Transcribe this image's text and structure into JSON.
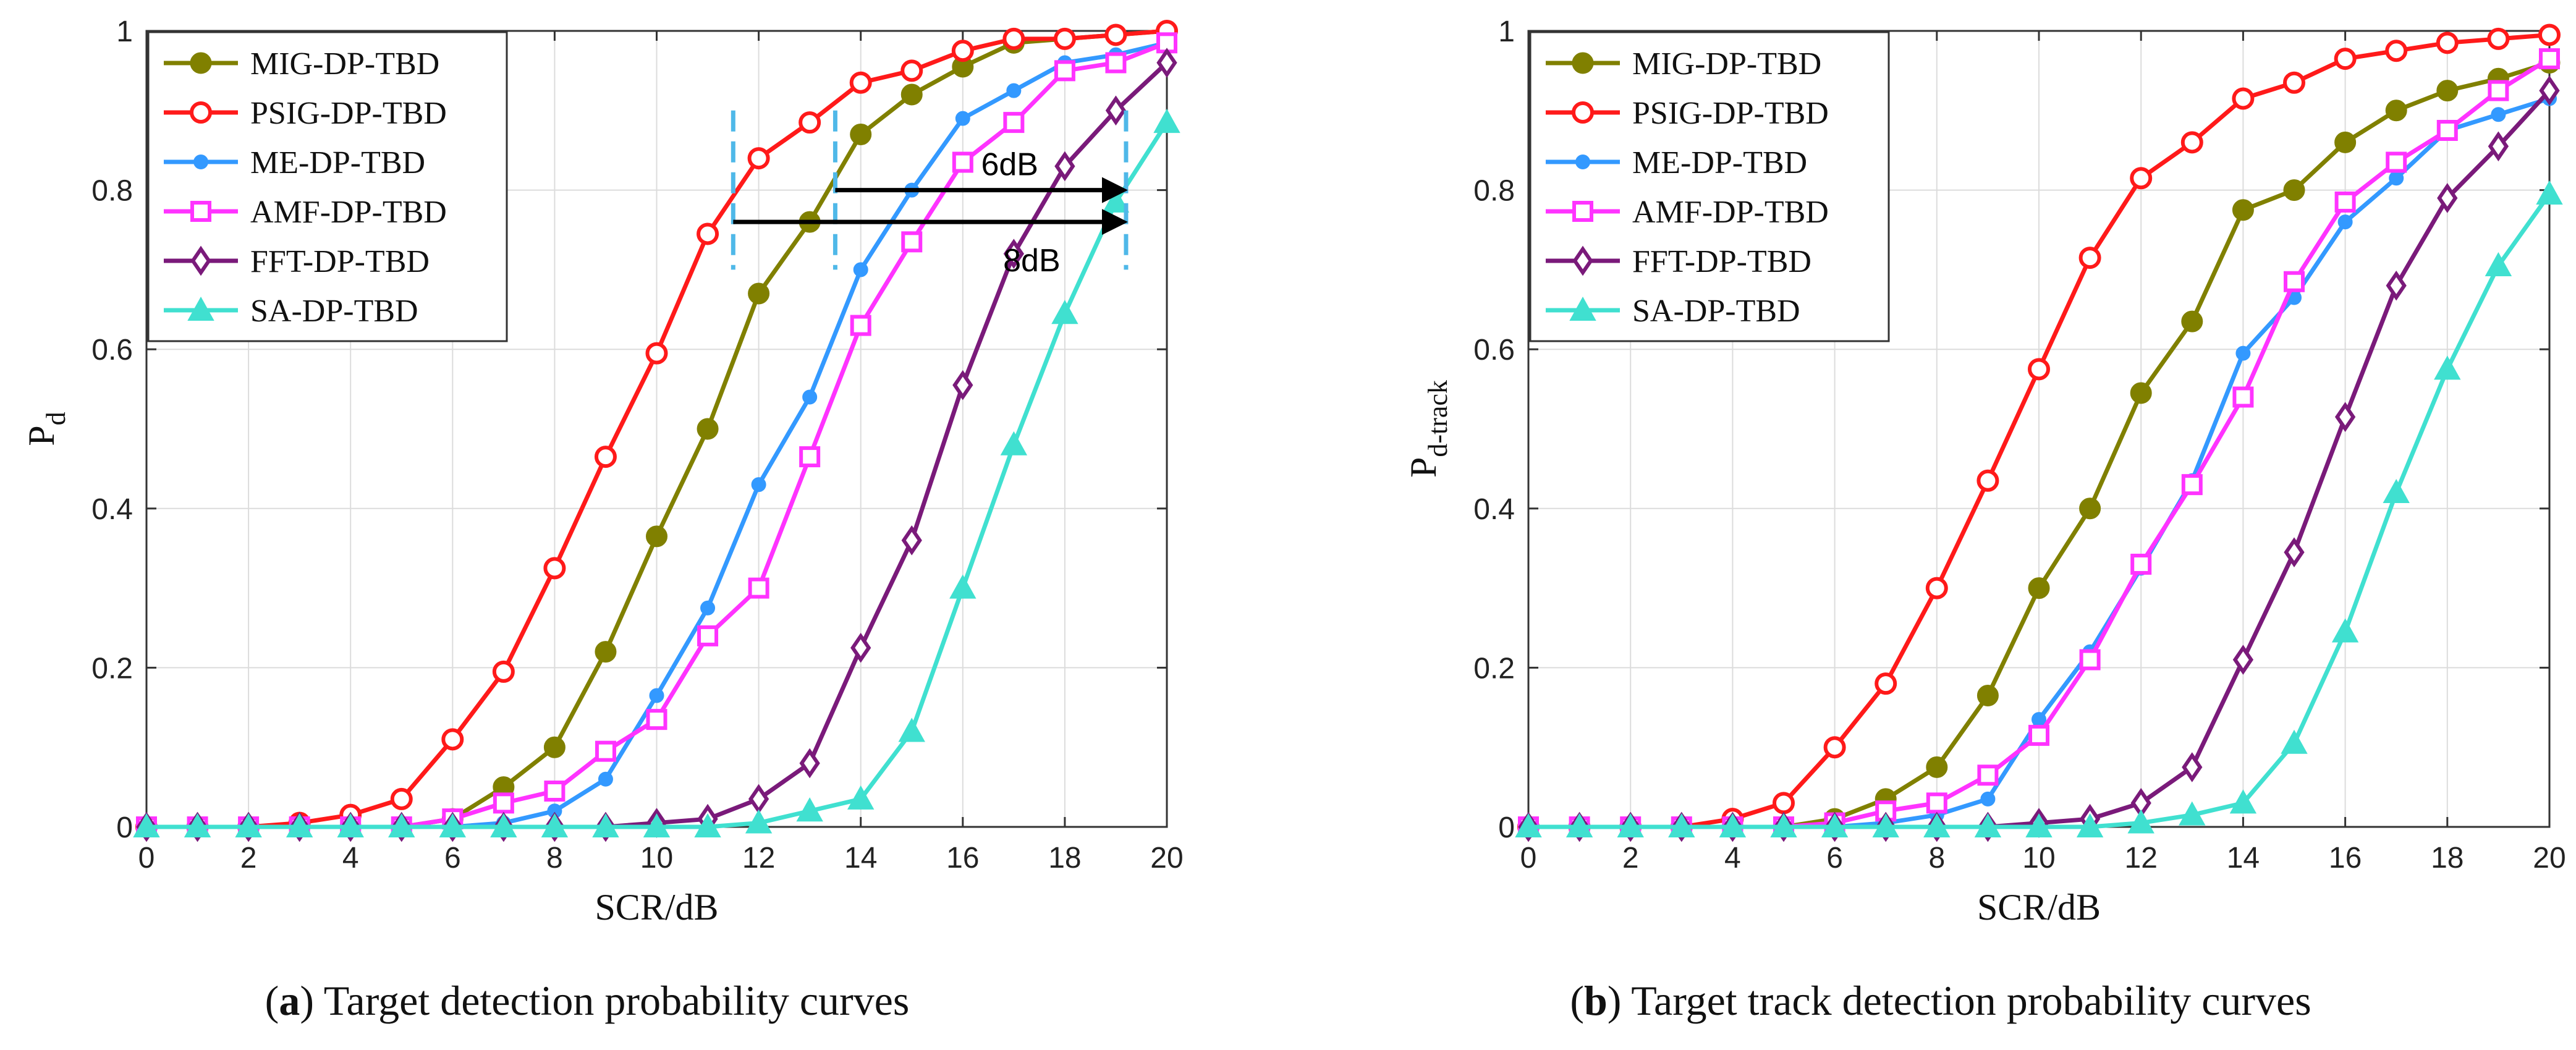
{
  "colors": {
    "MIG-DP-TBD": "#808000",
    "PSIG-DP-TBD": "#ff1a1a",
    "ME-DP-TBD": "#3399ff",
    "AMF-DP-TBD": "#ff33ff",
    "FFT-DP-TBD": "#7a1a7a",
    "SA-DP-TBD": "#40e0d0",
    "annotation_dash": "#4fb8e8"
  },
  "captions": {
    "a": {
      "letter": "a",
      "text": "Target detection probability curves"
    },
    "b": {
      "letter": "b",
      "text": "Target track detection probability curves"
    }
  },
  "chart_data": [
    {
      "id": "a",
      "type": "line",
      "xlabel": "SCR/dB",
      "ylabel": "P",
      "ylabel_sub": "d",
      "xlim": [
        0,
        20
      ],
      "ylim": [
        0,
        1
      ],
      "xticks": [
        0,
        2,
        4,
        6,
        8,
        10,
        12,
        14,
        16,
        18,
        20
      ],
      "yticks": [
        0,
        0.2,
        0.4,
        0.6,
        0.8,
        1
      ],
      "ytick_labels": [
        "0",
        "0.2",
        "0.4",
        "0.6",
        "0.8",
        "1"
      ],
      "grid": true,
      "legend_position": "top-left",
      "x": [
        0,
        1,
        2,
        3,
        4,
        5,
        6,
        7,
        8,
        9,
        10,
        11,
        12,
        13,
        14,
        15,
        16,
        17,
        18,
        19,
        20
      ],
      "series": [
        {
          "name": "MIG-DP-TBD",
          "marker": "circle-filled",
          "values": [
            0,
            0,
            0,
            0,
            0,
            0,
            0.01,
            0.05,
            0.1,
            0.22,
            0.365,
            0.5,
            0.67,
            0.76,
            0.87,
            0.92,
            0.955,
            0.985,
            0.99,
            0.995,
            1.0
          ]
        },
        {
          "name": "PSIG-DP-TBD",
          "marker": "circle-open",
          "values": [
            0,
            0,
            0,
            0.005,
            0.015,
            0.035,
            0.11,
            0.195,
            0.325,
            0.465,
            0.595,
            0.745,
            0.84,
            0.885,
            0.935,
            0.95,
            0.975,
            0.99,
            0.99,
            0.995,
            1.0
          ]
        },
        {
          "name": "ME-DP-TBD",
          "marker": "dot-filled",
          "values": [
            0,
            0,
            0,
            0,
            0,
            0,
            0,
            0.005,
            0.02,
            0.06,
            0.165,
            0.275,
            0.43,
            0.54,
            0.7,
            0.8,
            0.89,
            0.925,
            0.96,
            0.97,
            0.985
          ]
        },
        {
          "name": "AMF-DP-TBD",
          "marker": "square-open",
          "values": [
            0,
            0,
            0,
            0,
            0,
            0,
            0.01,
            0.03,
            0.045,
            0.095,
            0.135,
            0.24,
            0.3,
            0.465,
            0.63,
            0.735,
            0.835,
            0.885,
            0.95,
            0.96,
            0.985
          ]
        },
        {
          "name": "FFT-DP-TBD",
          "marker": "diamond-open",
          "values": [
            0,
            0,
            0,
            0,
            0,
            0,
            0,
            0,
            0,
            0,
            0.005,
            0.01,
            0.035,
            0.08,
            0.225,
            0.36,
            0.555,
            0.72,
            0.83,
            0.9,
            0.96
          ]
        },
        {
          "name": "SA-DP-TBD",
          "marker": "triangle-filled",
          "values": [
            0,
            0,
            0,
            0,
            0,
            0,
            0,
            0,
            0,
            0,
            0,
            0,
            0.005,
            0.02,
            0.035,
            0.12,
            0.3,
            0.48,
            0.645,
            0.785,
            0.885
          ]
        }
      ],
      "annotations": [
        {
          "text": "6dB",
          "x_from": 13.5,
          "x_to": 19.2,
          "y": 0.8
        },
        {
          "text": "8dB",
          "x_from": 11.5,
          "x_to": 19.2,
          "y": 0.76
        }
      ],
      "dashed_guides": [
        {
          "x": 11.5,
          "y_from": 0.7,
          "y_to": 0.9
        },
        {
          "x": 13.5,
          "y_from": 0.7,
          "y_to": 0.9
        },
        {
          "x": 19.2,
          "y_from": 0.7,
          "y_to": 0.9
        }
      ]
    },
    {
      "id": "b",
      "type": "line",
      "xlabel": "SCR/dB",
      "ylabel": "P",
      "ylabel_sub": "d-track",
      "xlim": [
        0,
        20
      ],
      "ylim": [
        0,
        1
      ],
      "xticks": [
        0,
        2,
        4,
        6,
        8,
        10,
        12,
        14,
        16,
        18,
        20
      ],
      "yticks": [
        0,
        0.2,
        0.4,
        0.6,
        0.8,
        1
      ],
      "ytick_labels": [
        "0",
        "0.2",
        "0.4",
        "0.6",
        "0.8",
        "1"
      ],
      "grid": true,
      "legend_position": "top-left",
      "x": [
        0,
        1,
        2,
        3,
        4,
        5,
        6,
        7,
        8,
        9,
        10,
        11,
        12,
        13,
        14,
        15,
        16,
        17,
        18,
        19,
        20
      ],
      "series": [
        {
          "name": "MIG-DP-TBD",
          "marker": "circle-filled",
          "values": [
            0,
            0,
            0,
            0,
            0,
            0,
            0.01,
            0.035,
            0.075,
            0.165,
            0.3,
            0.4,
            0.545,
            0.635,
            0.775,
            0.8,
            0.86,
            0.9,
            0.925,
            0.94,
            0.96
          ]
        },
        {
          "name": "PSIG-DP-TBD",
          "marker": "circle-open",
          "values": [
            0,
            0,
            0,
            0,
            0.01,
            0.03,
            0.1,
            0.18,
            0.3,
            0.435,
            0.575,
            0.715,
            0.815,
            0.86,
            0.915,
            0.935,
            0.965,
            0.975,
            0.985,
            0.99,
            0.995
          ]
        },
        {
          "name": "ME-DP-TBD",
          "marker": "dot-filled",
          "values": [
            0,
            0,
            0,
            0,
            0,
            0,
            0,
            0.005,
            0.015,
            0.035,
            0.135,
            0.22,
            0.325,
            0.435,
            0.595,
            0.665,
            0.76,
            0.815,
            0.875,
            0.895,
            0.915
          ]
        },
        {
          "name": "AMF-DP-TBD",
          "marker": "square-open",
          "values": [
            0,
            0,
            0,
            0,
            0,
            0,
            0.005,
            0.02,
            0.03,
            0.065,
            0.115,
            0.21,
            0.33,
            0.43,
            0.54,
            0.685,
            0.785,
            0.835,
            0.875,
            0.925,
            0.965
          ]
        },
        {
          "name": "FFT-DP-TBD",
          "marker": "diamond-open",
          "values": [
            0,
            0,
            0,
            0,
            0,
            0,
            0,
            0,
            0,
            0,
            0.005,
            0.01,
            0.03,
            0.075,
            0.21,
            0.345,
            0.515,
            0.68,
            0.79,
            0.855,
            0.925
          ]
        },
        {
          "name": "SA-DP-TBD",
          "marker": "triangle-filled",
          "values": [
            0,
            0,
            0,
            0,
            0,
            0,
            0,
            0,
            0,
            0,
            0,
            0,
            0.005,
            0.015,
            0.03,
            0.105,
            0.245,
            0.42,
            0.575,
            0.705,
            0.795
          ]
        }
      ],
      "annotations": [],
      "dashed_guides": []
    }
  ]
}
